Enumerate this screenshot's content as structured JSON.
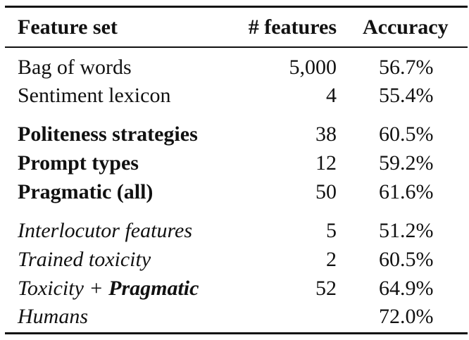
{
  "header": {
    "feature_set": "Feature set",
    "num_features": "# features",
    "accuracy": "Accuracy"
  },
  "rows": [
    {
      "name": "Bag of words",
      "features": "5,000",
      "accuracy": "56.7%"
    },
    {
      "name": "Sentiment lexicon",
      "features": "4",
      "accuracy": "55.4%"
    },
    {
      "name": "Politeness strategies",
      "features": "38",
      "accuracy": "60.5%"
    },
    {
      "name": "Prompt types",
      "features": "12",
      "accuracy": "59.2%"
    },
    {
      "name": "Pragmatic (all)",
      "features": "50",
      "accuracy": "61.6%"
    },
    {
      "name": "Interlocutor features",
      "features": "5",
      "accuracy": "51.2%"
    },
    {
      "name": "Trained toxicity",
      "features": "2",
      "accuracy": "60.5%"
    },
    {
      "name_part1": "Toxicity + ",
      "name_part2": "Pragmatic",
      "features": "52",
      "accuracy": "64.9%"
    },
    {
      "name": "Humans",
      "features": "",
      "accuracy": "72.0%"
    }
  ]
}
